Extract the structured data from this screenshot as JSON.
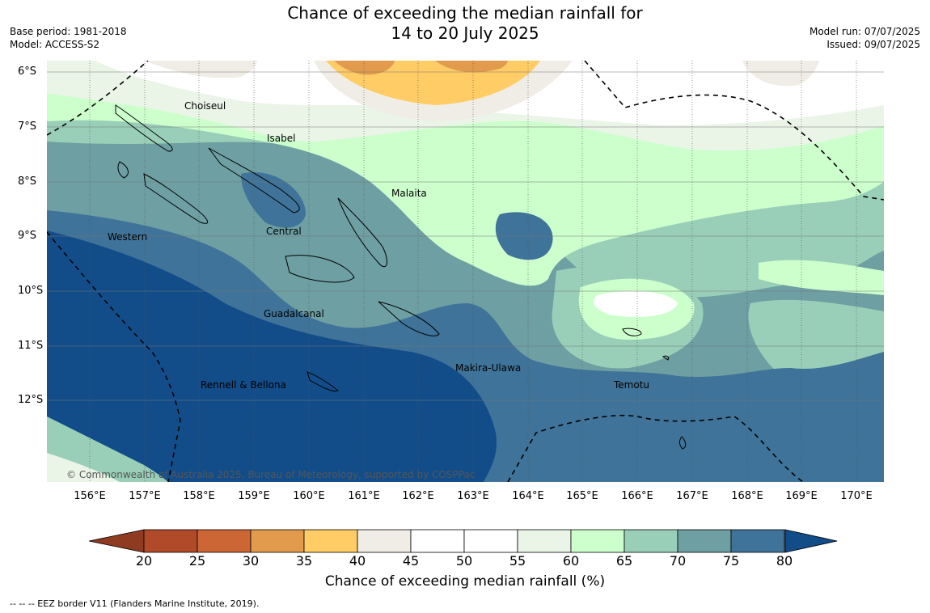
{
  "title_line1": "Chance of exceeding the median rainfall for",
  "title_line2": "14 to 20 July 2025",
  "base_period": "Base period: 1981-2018",
  "model": "Model: ACCESS-S2",
  "model_run": "Model run: 07/07/2025",
  "issued": "Issued: 09/07/2025",
  "copyright": "© Commonwealth of Australia 2025, Bureau of Meteorology, supported by COSPPac",
  "x_ticks": [
    "156°E",
    "157°E",
    "158°E",
    "159°E",
    "160°E",
    "161°E",
    "162°E",
    "163°E",
    "164°E",
    "165°E",
    "166°E",
    "167°E",
    "168°E",
    "169°E",
    "170°E"
  ],
  "y_ticks": [
    "6°S",
    "7°S",
    "8°S",
    "9°S",
    "10°S",
    "11°S",
    "12°S"
  ],
  "provinces": [
    "Choiseul",
    "Isabel",
    "Malaita",
    "Western",
    "Central",
    "Guadalcanal",
    "Makira-Ulawa",
    "Rennell & Bellona",
    "Temotu"
  ],
  "colorbar": {
    "title": "Chance of exceeding median rainfall (%)",
    "labels": [
      "20",
      "25",
      "30",
      "35",
      "40",
      "45",
      "50",
      "55",
      "60",
      "65",
      "70",
      "75",
      "80"
    ],
    "colors": [
      "#b14a29",
      "#cc6634",
      "#e29a4d",
      "#ffcc66",
      "#f0ede6",
      "#ffffff",
      "#ffffff",
      "#eaf5e8",
      "#ccffcc",
      "#99cfb8",
      "#6e9fa3",
      "#3f7399"
    ],
    "under_color": "#8e3b22",
    "over_color": "#124d8a"
  },
  "eez_note": "--  --  -- EEZ border V11 (Flanders Marine Institute, 2019)."
}
